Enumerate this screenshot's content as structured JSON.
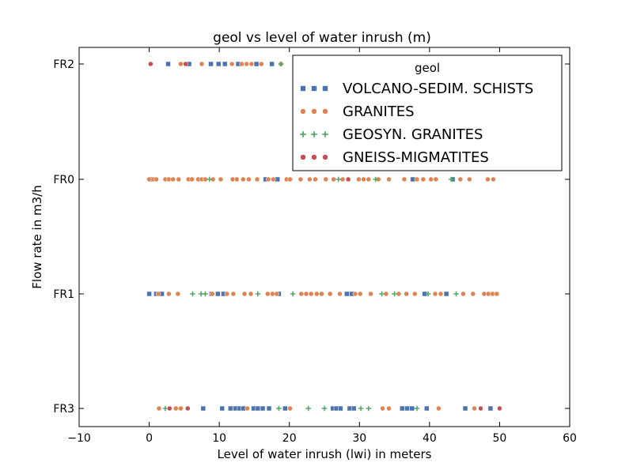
{
  "chart_data": {
    "type": "scatter",
    "title": "geol vs level of water inrush (m)",
    "xlabel": "Level of water inrush (lwi) in meters",
    "ylabel": "Flow rate in m3/h",
    "xlim": [
      -10,
      60
    ],
    "xticks": [
      "−10",
      "0",
      "10",
      "20",
      "30",
      "40",
      "50",
      "60"
    ],
    "xtick_values": [
      -10,
      0,
      10,
      20,
      30,
      40,
      50,
      60
    ],
    "categories": [
      "FR2",
      "FR0",
      "FR1",
      "FR3"
    ],
    "grid": false,
    "legend": {
      "title": "geol",
      "placement": "top-right"
    },
    "series": [
      {
        "name": "VOLCANO-SEDIM. SCHISTS",
        "marker": "square",
        "color": "#4c72b0",
        "points": [
          [
            "FR2",
            2.7
          ],
          [
            "FR2",
            5.7
          ],
          [
            "FR2",
            8.8
          ],
          [
            "FR2",
            9.9
          ],
          [
            "FR2",
            10.8
          ],
          [
            "FR2",
            12.7
          ],
          [
            "FR2",
            15.3
          ],
          [
            "FR2",
            17.5
          ],
          [
            "FR0",
            0.3
          ],
          [
            "FR0",
            16.6
          ],
          [
            "FR0",
            18.3
          ],
          [
            "FR0",
            37.6
          ],
          [
            "FR0",
            43.3
          ],
          [
            "FR1",
            0.0
          ],
          [
            "FR1",
            1.0
          ],
          [
            "FR1",
            1.8
          ],
          [
            "FR1",
            8.9
          ],
          [
            "FR1",
            9.8
          ],
          [
            "FR1",
            10.6
          ],
          [
            "FR1",
            18.5
          ],
          [
            "FR1",
            28.2
          ],
          [
            "FR1",
            28.9
          ],
          [
            "FR1",
            39.3
          ],
          [
            "FR1",
            42.4
          ],
          [
            "FR3",
            7.7
          ],
          [
            "FR3",
            10.4
          ],
          [
            "FR3",
            11.6
          ],
          [
            "FR3",
            12.3
          ],
          [
            "FR3",
            12.9
          ],
          [
            "FR3",
            13.4
          ],
          [
            "FR3",
            14.9
          ],
          [
            "FR3",
            15.5
          ],
          [
            "FR3",
            16.2
          ],
          [
            "FR3",
            17.1
          ],
          [
            "FR3",
            19.4
          ],
          [
            "FR3",
            26.2
          ],
          [
            "FR3",
            26.7
          ],
          [
            "FR3",
            27.3
          ],
          [
            "FR3",
            28.6
          ],
          [
            "FR3",
            29.2
          ],
          [
            "FR3",
            36.1
          ],
          [
            "FR3",
            36.8
          ],
          [
            "FR3",
            37.5
          ],
          [
            "FR3",
            39.6
          ],
          [
            "FR3",
            45.1
          ],
          [
            "FR3",
            48.7
          ]
        ]
      },
      {
        "name": "GRANITES",
        "marker": "circle",
        "color": "#dd8452",
        "points": [
          [
            "FR2",
            4.5
          ],
          [
            "FR2",
            7.5
          ],
          [
            "FR2",
            11.8
          ],
          [
            "FR2",
            13.2
          ],
          [
            "FR2",
            13.9
          ],
          [
            "FR2",
            14.6
          ],
          [
            "FR2",
            16.0
          ],
          [
            "FR2",
            18.8
          ],
          [
            "FR0",
            0.0
          ],
          [
            "FR0",
            0.6
          ],
          [
            "FR0",
            1.0
          ],
          [
            "FR0",
            2.3
          ],
          [
            "FR0",
            2.8
          ],
          [
            "FR0",
            3.4
          ],
          [
            "FR0",
            4.2
          ],
          [
            "FR0",
            5.6
          ],
          [
            "FR0",
            6.1
          ],
          [
            "FR0",
            7.0
          ],
          [
            "FR0",
            7.5
          ],
          [
            "FR0",
            8.0
          ],
          [
            "FR0",
            9.1
          ],
          [
            "FR0",
            10.2
          ],
          [
            "FR0",
            11.9
          ],
          [
            "FR0",
            12.5
          ],
          [
            "FR0",
            13.4
          ],
          [
            "FR0",
            14.2
          ],
          [
            "FR0",
            15.4
          ],
          [
            "FR0",
            17.0
          ],
          [
            "FR0",
            17.7
          ],
          [
            "FR0",
            19.6
          ],
          [
            "FR0",
            20.1
          ],
          [
            "FR0",
            21.6
          ],
          [
            "FR0",
            22.9
          ],
          [
            "FR0",
            23.7
          ],
          [
            "FR0",
            25.2
          ],
          [
            "FR0",
            26.3
          ],
          [
            "FR0",
            27.6
          ],
          [
            "FR0",
            29.9
          ],
          [
            "FR0",
            30.6
          ],
          [
            "FR0",
            31.3
          ],
          [
            "FR0",
            32.7
          ],
          [
            "FR0",
            34.2
          ],
          [
            "FR0",
            36.4
          ],
          [
            "FR0",
            38.2
          ],
          [
            "FR0",
            39.1
          ],
          [
            "FR0",
            40.2
          ],
          [
            "FR0",
            40.9
          ],
          [
            "FR0",
            44.4
          ],
          [
            "FR0",
            45.7
          ],
          [
            "FR0",
            48.3
          ],
          [
            "FR0",
            49.1
          ],
          [
            "FR1",
            1.3
          ],
          [
            "FR1",
            2.8
          ],
          [
            "FR1",
            4.1
          ],
          [
            "FR1",
            9.0
          ],
          [
            "FR1",
            11.1
          ],
          [
            "FR1",
            12.0
          ],
          [
            "FR1",
            13.6
          ],
          [
            "FR1",
            14.5
          ],
          [
            "FR1",
            16.9
          ],
          [
            "FR1",
            17.6
          ],
          [
            "FR1",
            18.2
          ],
          [
            "FR1",
            21.7
          ],
          [
            "FR1",
            22.4
          ],
          [
            "FR1",
            23.1
          ],
          [
            "FR1",
            23.9
          ],
          [
            "FR1",
            24.6
          ],
          [
            "FR1",
            25.8
          ],
          [
            "FR1",
            27.2
          ],
          [
            "FR1",
            29.4
          ],
          [
            "FR1",
            30.1
          ],
          [
            "FR1",
            31.6
          ],
          [
            "FR1",
            33.8
          ],
          [
            "FR1",
            35.6
          ],
          [
            "FR1",
            36.7
          ],
          [
            "FR1",
            37.9
          ],
          [
            "FR1",
            40.8
          ],
          [
            "FR1",
            41.6
          ],
          [
            "FR1",
            44.8
          ],
          [
            "FR1",
            46.2
          ],
          [
            "FR1",
            47.8
          ],
          [
            "FR1",
            48.4
          ],
          [
            "FR1",
            49.0
          ],
          [
            "FR1",
            49.6
          ],
          [
            "FR3",
            1.4
          ],
          [
            "FR3",
            3.8
          ],
          [
            "FR3",
            4.5
          ],
          [
            "FR3",
            14.0
          ],
          [
            "FR3",
            20.1
          ],
          [
            "FR3",
            33.3
          ],
          [
            "FR3",
            34.2
          ],
          [
            "FR3",
            41.3
          ],
          [
            "FR3",
            46.4
          ]
        ]
      },
      {
        "name": "GEOSYN. GRANITES",
        "marker": "plus",
        "color": "#55a868",
        "points": [
          [
            "FR2",
            18.8
          ],
          [
            "FR0",
            8.6
          ],
          [
            "FR0",
            27.0
          ],
          [
            "FR0",
            32.3
          ],
          [
            "FR0",
            43.1
          ],
          [
            "FR1",
            6.2
          ],
          [
            "FR1",
            7.4
          ],
          [
            "FR1",
            8.0
          ],
          [
            "FR1",
            15.5
          ],
          [
            "FR1",
            20.5
          ],
          [
            "FR1",
            33.2
          ],
          [
            "FR1",
            35.0
          ],
          [
            "FR1",
            39.8
          ],
          [
            "FR1",
            43.8
          ],
          [
            "FR3",
            2.3
          ],
          [
            "FR3",
            18.5
          ],
          [
            "FR3",
            22.7
          ],
          [
            "FR3",
            25.0
          ],
          [
            "FR3",
            30.2
          ],
          [
            "FR3",
            31.3
          ],
          [
            "FR3",
            38.2
          ]
        ]
      },
      {
        "name": "GNEISS-MIGMATITES",
        "marker": "circle",
        "color": "#c44e52",
        "points": [
          [
            "FR2",
            0.2
          ],
          [
            "FR2",
            5.2
          ],
          [
            "FR0",
            28.4
          ],
          [
            "FR3",
            2.9
          ],
          [
            "FR3",
            5.5
          ],
          [
            "FR3",
            47.3
          ],
          [
            "FR3",
            50.0
          ]
        ]
      }
    ]
  }
}
